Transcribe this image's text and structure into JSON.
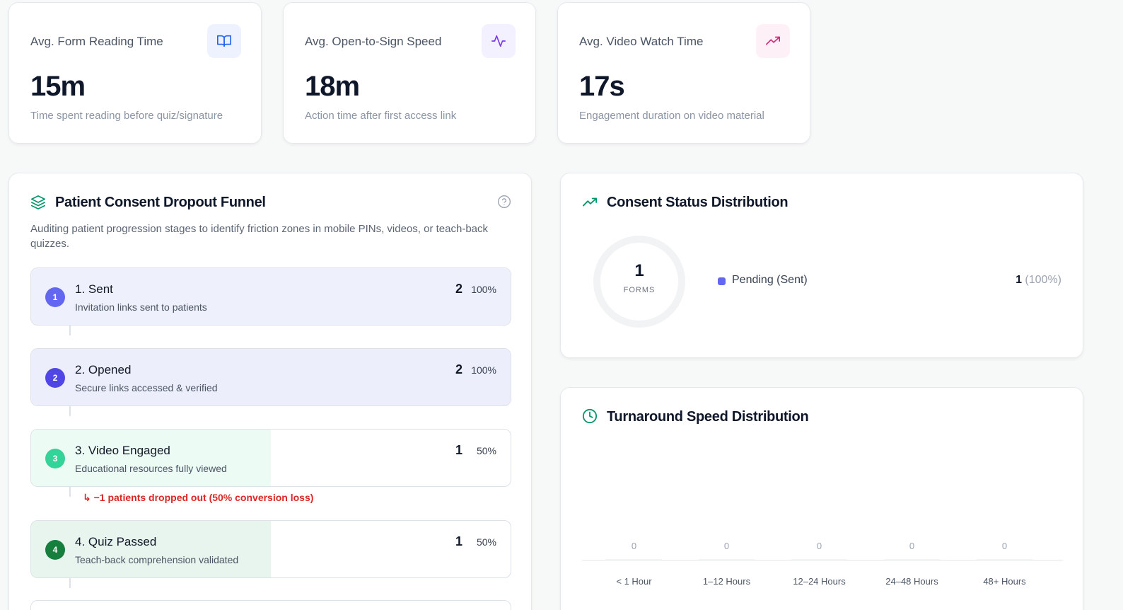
{
  "colors": {
    "blue_accent": "#2563eb",
    "purple_accent": "#7c3aed",
    "pink_accent": "#db2777",
    "green_accent": "#059669",
    "indigo_pending": "#6366f1",
    "danger_red": "#dc2626"
  },
  "kpis": [
    {
      "title": "Avg. Form Reading Time",
      "value": "15m",
      "subtitle": "Time spent reading before quiz/signature",
      "icon": "book-open-icon"
    },
    {
      "title": "Avg. Open-to-Sign Speed",
      "value": "18m",
      "subtitle": "Action time after first access link",
      "icon": "activity-icon"
    },
    {
      "title": "Avg. Video Watch Time",
      "value": "17s",
      "subtitle": "Engagement duration on video material",
      "icon": "trending-up-icon"
    }
  ],
  "funnel": {
    "title": "Patient Consent Dropout Funnel",
    "description": "Auditing patient progression stages to identify friction zones in mobile PINs, videos, or teach-back quizzes.",
    "stages": [
      {
        "num": "1",
        "name": "1. Sent",
        "desc": "Invitation links sent to patients",
        "count": "2",
        "pct": "100%",
        "fraction": 1.0
      },
      {
        "num": "2",
        "name": "2. Opened",
        "desc": "Secure links accessed & verified",
        "count": "2",
        "pct": "100%",
        "fraction": 1.0
      },
      {
        "num": "3",
        "name": "3. Video Engaged",
        "desc": "Educational resources fully viewed",
        "count": "1",
        "pct": "50%",
        "fraction": 0.5
      },
      {
        "num": "4",
        "name": "4. Quiz Passed",
        "desc": "Teach-back comprehension validated",
        "count": "1",
        "pct": "50%",
        "fraction": 0.5
      }
    ],
    "dropout_note": "↳ −1 patients dropped out (50% conversion loss)"
  },
  "consent_status": {
    "title": "Consent Status Distribution",
    "total": "1",
    "total_label": "FORMS",
    "legend": [
      {
        "label": "Pending (Sent)",
        "count": "1",
        "pct": "(100%)"
      }
    ]
  },
  "turnaround": {
    "title": "Turnaround Speed Distribution"
  },
  "chart_data": {
    "type": "bar",
    "categories": [
      "< 1 Hour",
      "1–12 Hours",
      "12–24 Hours",
      "24–48 Hours",
      "48+ Hours"
    ],
    "values": [
      0,
      0,
      0,
      0,
      0
    ],
    "value_labels": [
      "0",
      "0",
      "0",
      "0",
      "0"
    ],
    "title": "Turnaround Speed Distribution",
    "xlabel": "",
    "ylabel": "",
    "grid": false
  }
}
